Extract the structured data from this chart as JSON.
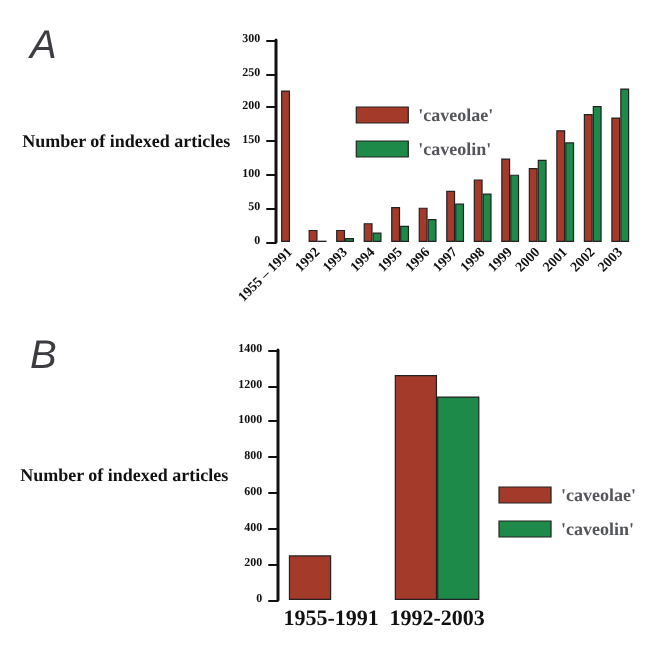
{
  "chart_data": [
    {
      "type": "bar",
      "title": "A",
      "ylabel": "Number of indexed articles",
      "categories": [
        "1955 – 1991",
        "1992",
        "1993",
        "1994",
        "1995",
        "1996",
        "1997",
        "1998",
        "1999",
        "2000",
        "2001",
        "2002",
        "2003"
      ],
      "series": [
        {
          "name": "'caveolae'",
          "color": "#a33a2a",
          "values": [
            225,
            18,
            18,
            28,
            52,
            51,
            76,
            93,
            124,
            110,
            166,
            190,
            185
          ]
        },
        {
          "name": "'caveolin'",
          "color": "#1e8a4a",
          "values": [
            null,
            2,
            6,
            14,
            24,
            34,
            57,
            72,
            100,
            122,
            148,
            202,
            228
          ]
        }
      ],
      "ylim": [
        0,
        300
      ],
      "yticks": [
        0,
        50,
        100,
        150,
        200,
        250,
        300
      ],
      "legend": "top",
      "grid": false
    },
    {
      "type": "bar",
      "title": "B",
      "ylabel": "Number of indexed articles",
      "categories": [
        "1955-1991",
        "1992-2003"
      ],
      "series": [
        {
          "name": "'caveolae'",
          "color": "#a33a2a",
          "values": [
            250,
            1260
          ]
        },
        {
          "name": "'caveolin'",
          "color": "#1e8a4a",
          "values": [
            null,
            1140
          ]
        }
      ],
      "ylim": [
        0,
        1400
      ],
      "yticks": [
        0,
        200,
        400,
        600,
        800,
        1000,
        1200,
        1400
      ],
      "legend": "right",
      "grid": false
    }
  ]
}
